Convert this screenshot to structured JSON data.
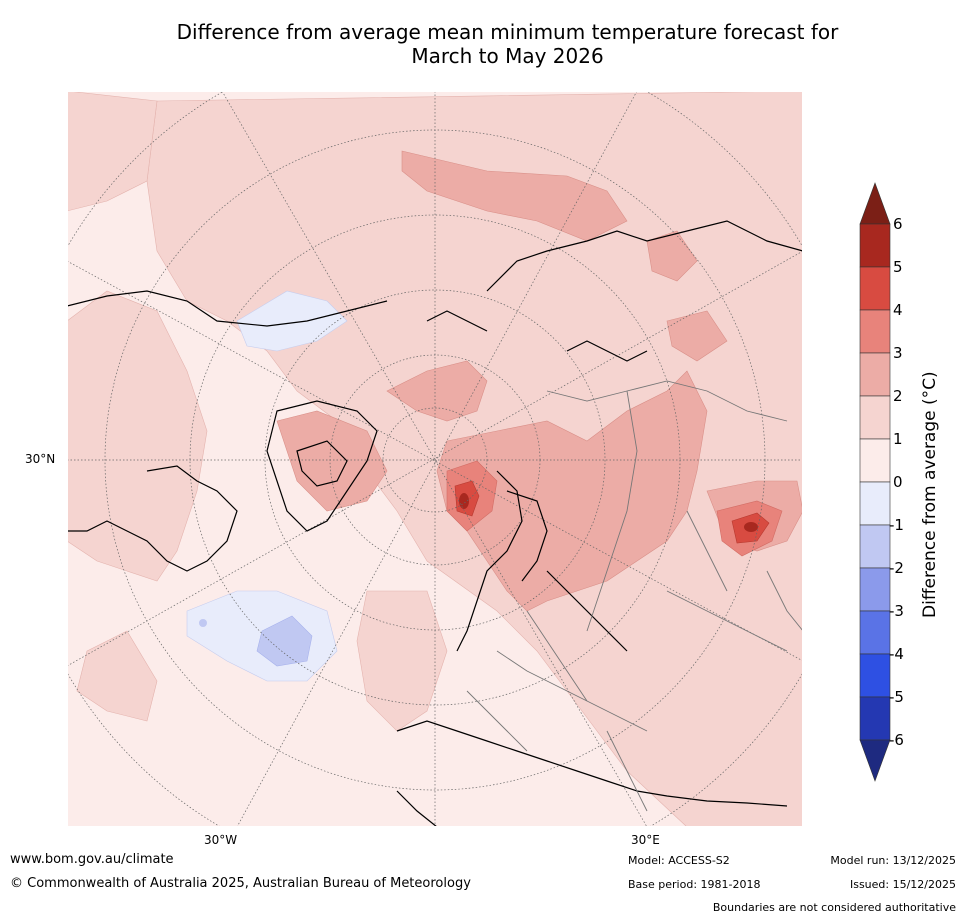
{
  "title_line1": "Difference from average mean minimum temperature forecast for",
  "title_line2": "March to May 2026",
  "axis_labels": {
    "lat_30N": "30°N",
    "lon_30W": "30°W",
    "lon_30E": "30°E"
  },
  "colorbar": {
    "label": "Difference from average (°C)",
    "ticks": [
      "6",
      "5",
      "4",
      "3",
      "2",
      "1",
      "0",
      "-1",
      "-2",
      "-3",
      "-4",
      "-5",
      "-6"
    ],
    "colors": {
      "above_6": "#7b1f16",
      "5_to_6": "#a8281f",
      "4_to_5": "#d84b41",
      "3_to_4": "#e8837b",
      "2_to_3": "#ecaca6",
      "1_to_2": "#f5d4d0",
      "0_to_1": "#fcecea",
      "-1_to_0": "#e8ecfb",
      "-2_to_-1": "#c0c8f2",
      "-3_to_-2": "#8b9aeb",
      "-4_to_-3": "#5a73e6",
      "-5_to_-4": "#2e50e3",
      "-6_to_-5": "#2438b2",
      "below_-6": "#1e2a80"
    }
  },
  "footer": {
    "website": "www.bom.gov.au/climate",
    "copyright": "© Commonwealth of Australia 2025, Australian Bureau of Meteorology",
    "model": "Model: ACCESS-S2",
    "base_period": "Base period: 1981-2018",
    "model_run": "Model run: 13/12/2025",
    "issued": "Issued: 15/12/2025",
    "disclaimer": "Boundaries are not considered authoritative"
  }
}
